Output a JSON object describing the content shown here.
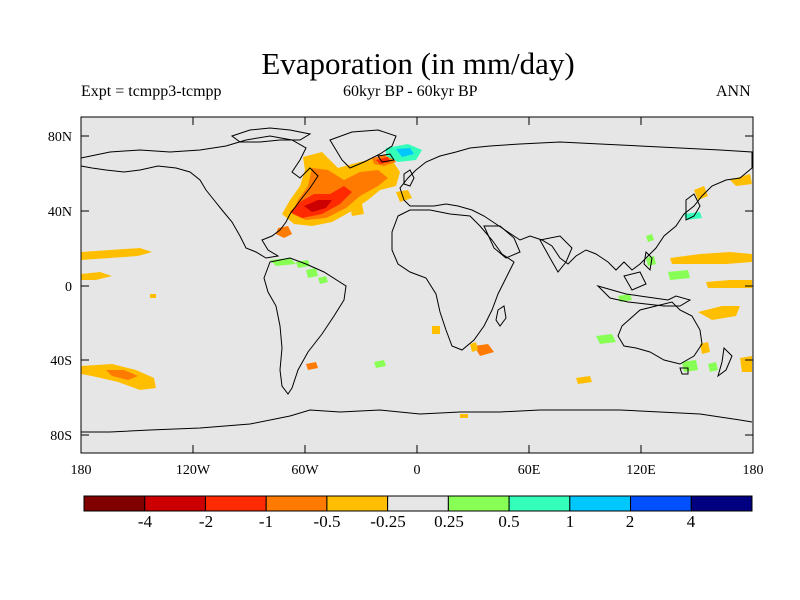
{
  "title": "Evaporation (in mm/day)",
  "subtitle_left": "Expt = tcmpp3-tcmpp",
  "subtitle_center": "60kyr BP - 60kyr BP",
  "subtitle_right": "ANN",
  "y_ticks": [
    "80N",
    "40N",
    "0",
    "40S",
    "80S"
  ],
  "x_ticks": [
    "180",
    "120W",
    "60W",
    "0",
    "60E",
    "120E",
    "180"
  ],
  "colorbar": {
    "colors": [
      "#800000",
      "#cc0000",
      "#ff2a00",
      "#ff7a00",
      "#ffbf00",
      "#e6e6e6",
      "#88ff55",
      "#33ffbb",
      "#00c8ff",
      "#0050ff",
      "#000080"
    ],
    "labels": [
      "-4",
      "-2",
      "-1",
      "-0.5",
      "-0.25",
      "0.25",
      "0.5",
      "1",
      "2",
      "4"
    ]
  },
  "colors": {
    "background": "#e6e6e6",
    "coast": "#000000"
  }
}
